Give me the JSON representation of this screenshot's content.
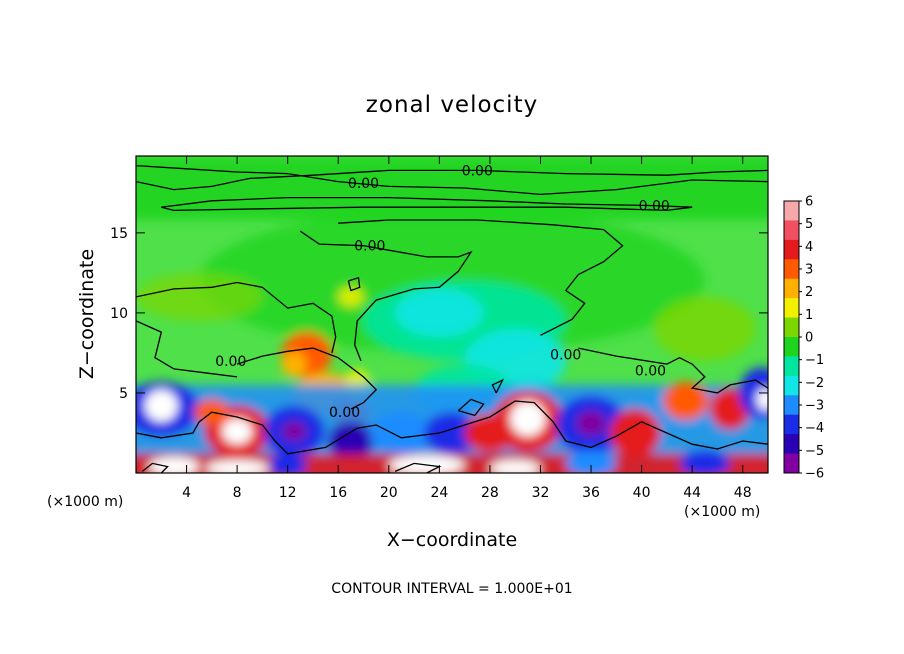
{
  "chart_data": {
    "type": "heatmap",
    "title": "zonal velocity",
    "xlabel": "X−coordinate",
    "ylabel": "Z−coordinate",
    "x_unit_left": "(×1000 m)",
    "x_unit_right": "(×1000 m)",
    "footer": "CONTOUR INTERVAL = 1.000E+01",
    "xlim": [
      0,
      50
    ],
    "ylim": [
      0,
      19.8
    ],
    "x_ticks": [
      "4",
      "8",
      "12",
      "16",
      "20",
      "24",
      "28",
      "32",
      "36",
      "40",
      "44",
      "48"
    ],
    "x_tick_values": [
      4,
      8,
      12,
      16,
      20,
      24,
      28,
      32,
      36,
      40,
      44,
      48
    ],
    "y_ticks": [
      "5",
      "10",
      "15"
    ],
    "y_tick_values": [
      5,
      10,
      15
    ],
    "colorbar": {
      "labels": [
        "6",
        "5",
        "4",
        "3",
        "2",
        "1",
        "0",
        "−1",
        "−2",
        "−3",
        "−4",
        "−5",
        "−6"
      ],
      "values": [
        6,
        5,
        4,
        3,
        2,
        1,
        0,
        -1,
        -2,
        -3,
        -4,
        -5,
        -6
      ],
      "colors": [
        "#f7a8a8",
        "#f25060",
        "#e41a1c",
        "#ff5a00",
        "#ffb000",
        "#f0f000",
        "#7cd600",
        "#1ed41e",
        "#00e6a0",
        "#10e6e6",
        "#1e8cff",
        "#1a2ce6",
        "#2a00b4",
        "#8000a0"
      ]
    },
    "contour_labels": [
      "0.00",
      "0.00",
      "0.00",
      "0.00",
      "0.00",
      "0.00",
      "0.00",
      "0.00"
    ],
    "contour_label_positions": [
      [
        27.0,
        18.9
      ],
      [
        18.0,
        18.1
      ],
      [
        41.0,
        16.7
      ],
      [
        18.5,
        14.2
      ],
      [
        7.5,
        7.0
      ],
      [
        16.5,
        3.8
      ],
      [
        34.0,
        7.4
      ],
      [
        40.7,
        6.4
      ]
    ]
  }
}
